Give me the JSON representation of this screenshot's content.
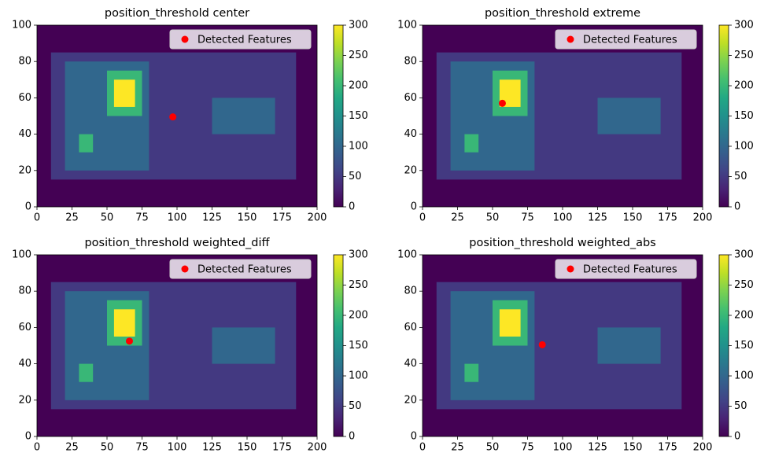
{
  "chart_data": [
    {
      "type": "heatmap",
      "title": "position_threshold center",
      "colormap": "viridis",
      "rects": [
        {
          "x": [
            0,
            200
          ],
          "y": [
            0,
            100
          ],
          "value": 0
        },
        {
          "x": [
            10,
            185
          ],
          "y": [
            15,
            85
          ],
          "value": 50
        },
        {
          "x": [
            20,
            80
          ],
          "y": [
            20,
            80
          ],
          "value": 100
        },
        {
          "x": [
            125,
            170
          ],
          "y": [
            40,
            60
          ],
          "value": 100
        },
        {
          "x": [
            50,
            75
          ],
          "y": [
            50,
            75
          ],
          "value": 200
        },
        {
          "x": [
            55,
            70
          ],
          "y": [
            55,
            70
          ],
          "value": 300
        },
        {
          "x": [
            30,
            40
          ],
          "y": [
            30,
            40
          ],
          "value": 200
        }
      ],
      "series": [
        {
          "name": "Detected Features",
          "color": "#ff0000",
          "x": [
            97
          ],
          "y": [
            49.5
          ]
        }
      ],
      "xlim": [
        0,
        200
      ],
      "ylim": [
        0,
        100
      ],
      "xticks": [
        0,
        25,
        50,
        75,
        100,
        125,
        150,
        175,
        200
      ],
      "yticks": [
        0,
        20,
        40,
        60,
        80,
        100
      ],
      "clim": [
        0,
        300
      ],
      "cticks": [
        0,
        50,
        100,
        150,
        200,
        250,
        300
      ],
      "legend": "upper right",
      "grid": false
    },
    {
      "type": "heatmap",
      "title": "position_threshold extreme",
      "colormap": "viridis",
      "rects": [
        {
          "x": [
            0,
            200
          ],
          "y": [
            0,
            100
          ],
          "value": 0
        },
        {
          "x": [
            10,
            185
          ],
          "y": [
            15,
            85
          ],
          "value": 50
        },
        {
          "x": [
            20,
            80
          ],
          "y": [
            20,
            80
          ],
          "value": 100
        },
        {
          "x": [
            125,
            170
          ],
          "y": [
            40,
            60
          ],
          "value": 100
        },
        {
          "x": [
            50,
            75
          ],
          "y": [
            50,
            75
          ],
          "value": 200
        },
        {
          "x": [
            55,
            70
          ],
          "y": [
            55,
            70
          ],
          "value": 300
        },
        {
          "x": [
            30,
            40
          ],
          "y": [
            30,
            40
          ],
          "value": 200
        }
      ],
      "series": [
        {
          "name": "Detected Features",
          "color": "#ff0000",
          "x": [
            57
          ],
          "y": [
            57
          ]
        }
      ],
      "xlim": [
        0,
        200
      ],
      "ylim": [
        0,
        100
      ],
      "xticks": [
        0,
        25,
        50,
        75,
        100,
        125,
        150,
        175,
        200
      ],
      "yticks": [
        0,
        20,
        40,
        60,
        80,
        100
      ],
      "clim": [
        0,
        300
      ],
      "cticks": [
        0,
        50,
        100,
        150,
        200,
        250,
        300
      ],
      "legend": "upper right",
      "grid": false
    },
    {
      "type": "heatmap",
      "title": "position_threshold weighted_diff",
      "colormap": "viridis",
      "rects": [
        {
          "x": [
            0,
            200
          ],
          "y": [
            0,
            100
          ],
          "value": 0
        },
        {
          "x": [
            10,
            185
          ],
          "y": [
            15,
            85
          ],
          "value": 50
        },
        {
          "x": [
            20,
            80
          ],
          "y": [
            20,
            80
          ],
          "value": 100
        },
        {
          "x": [
            125,
            170
          ],
          "y": [
            40,
            60
          ],
          "value": 100
        },
        {
          "x": [
            50,
            75
          ],
          "y": [
            50,
            75
          ],
          "value": 200
        },
        {
          "x": [
            55,
            70
          ],
          "y": [
            55,
            70
          ],
          "value": 300
        },
        {
          "x": [
            30,
            40
          ],
          "y": [
            30,
            40
          ],
          "value": 200
        }
      ],
      "series": [
        {
          "name": "Detected Features",
          "color": "#ff0000",
          "x": [
            66
          ],
          "y": [
            52.5
          ]
        }
      ],
      "xlim": [
        0,
        200
      ],
      "ylim": [
        0,
        100
      ],
      "xticks": [
        0,
        25,
        50,
        75,
        100,
        125,
        150,
        175,
        200
      ],
      "yticks": [
        0,
        20,
        40,
        60,
        80,
        100
      ],
      "clim": [
        0,
        300
      ],
      "cticks": [
        0,
        50,
        100,
        150,
        200,
        250,
        300
      ],
      "legend": "upper right",
      "grid": false
    },
    {
      "type": "heatmap",
      "title": "position_threshold weighted_abs",
      "colormap": "viridis",
      "rects": [
        {
          "x": [
            0,
            200
          ],
          "y": [
            0,
            100
          ],
          "value": 0
        },
        {
          "x": [
            10,
            185
          ],
          "y": [
            15,
            85
          ],
          "value": 50
        },
        {
          "x": [
            20,
            80
          ],
          "y": [
            20,
            80
          ],
          "value": 100
        },
        {
          "x": [
            125,
            170
          ],
          "y": [
            40,
            60
          ],
          "value": 100
        },
        {
          "x": [
            50,
            75
          ],
          "y": [
            50,
            75
          ],
          "value": 200
        },
        {
          "x": [
            55,
            70
          ],
          "y": [
            55,
            70
          ],
          "value": 300
        },
        {
          "x": [
            30,
            40
          ],
          "y": [
            30,
            40
          ],
          "value": 200
        }
      ],
      "series": [
        {
          "name": "Detected Features",
          "color": "#ff0000",
          "x": [
            85.5
          ],
          "y": [
            50.5
          ]
        }
      ],
      "xlim": [
        0,
        200
      ],
      "ylim": [
        0,
        100
      ],
      "xticks": [
        0,
        25,
        50,
        75,
        100,
        125,
        150,
        175,
        200
      ],
      "yticks": [
        0,
        20,
        40,
        60,
        80,
        100
      ],
      "clim": [
        0,
        300
      ],
      "cticks": [
        0,
        50,
        100,
        150,
        200,
        250,
        300
      ],
      "legend": "upper right",
      "grid": false
    }
  ]
}
